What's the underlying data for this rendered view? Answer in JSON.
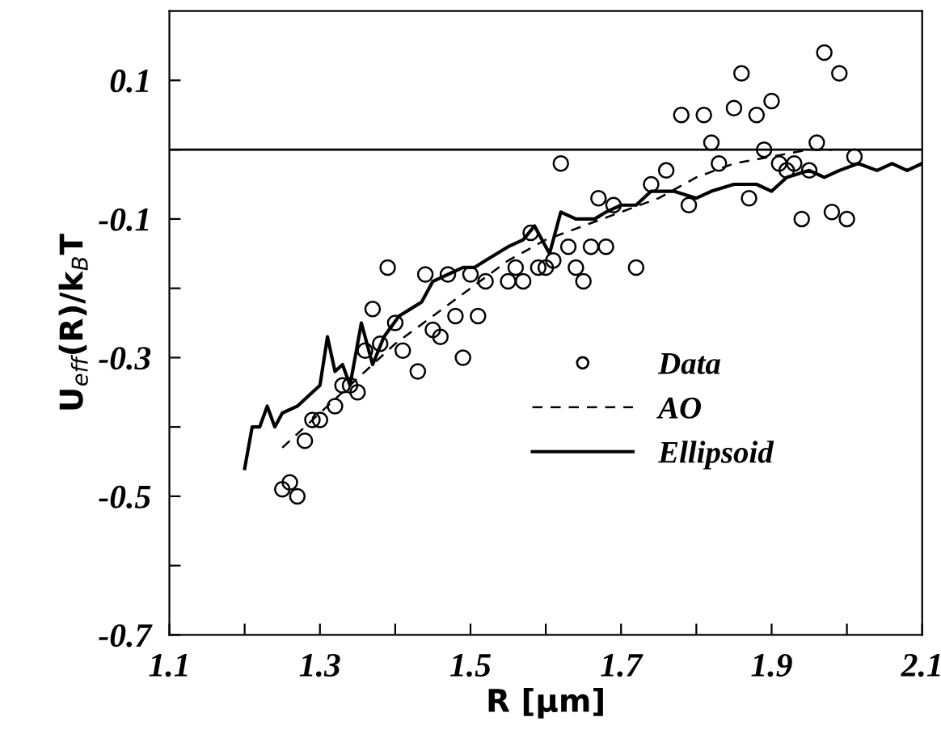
{
  "chart_data": {
    "type": "scatter",
    "xlabel": "R [µm]",
    "ylabel": "U$_{eff}$(R)/k$_{B}$T",
    "xlim": [
      1.1,
      2.1
    ],
    "ylim": [
      -0.7,
      0.2
    ],
    "xticks": [
      1.1,
      {
        "value": 1.2,
        "label": null
      },
      1.3,
      {
        "value": 1.4,
        "label": null
      },
      1.5,
      {
        "value": 1.6,
        "label": null
      },
      1.7,
      {
        "value": 1.8,
        "label": null
      },
      1.9,
      {
        "value": 2.0,
        "label": null
      },
      2.1
    ],
    "yticks": [
      -0.7,
      {
        "value": -0.6,
        "label": null
      },
      -0.5,
      {
        "value": -0.4,
        "label": null
      },
      -0.3,
      {
        "value": -0.2,
        "label": null
      },
      -0.1,
      {
        "value": 0,
        "label": null
      },
      0.1
    ],
    "ref_lines": [
      {
        "axis": "y",
        "value": 0,
        "color": "#000000",
        "line_style": "solid"
      }
    ],
    "grid": false,
    "legend": "bottom right",
    "series": [
      {
        "name": "Data",
        "marker": "circle",
        "color": "#000000",
        "x": [
          1.25,
          1.26,
          1.27,
          1.28,
          1.29,
          1.3,
          1.32,
          1.33,
          1.34,
          1.35,
          1.36,
          1.38,
          1.41,
          1.43,
          1.45,
          1.46,
          1.49,
          1.39,
          1.37,
          1.4,
          1.44,
          1.47,
          1.5,
          1.48,
          1.51,
          1.55,
          1.56,
          1.97,
          1.99,
          1.86,
          1.9,
          1.85,
          1.88,
          1.78,
          1.81,
          1.96,
          1.82,
          1.89,
          2.01,
          1.62,
          1.83,
          1.93,
          1.91,
          1.76,
          1.92,
          1.95,
          1.74,
          1.67,
          1.69,
          1.79,
          1.87,
          1.94,
          1.98,
          2.0,
          1.58,
          1.63,
          1.68,
          1.66,
          1.59,
          1.6,
          1.61,
          1.64,
          1.65,
          1.72,
          1.57,
          1.52
        ],
        "values": [
          -0.49,
          -0.48,
          -0.5,
          -0.42,
          -0.39,
          -0.39,
          -0.37,
          -0.34,
          -0.34,
          -0.35,
          -0.29,
          -0.28,
          -0.29,
          -0.32,
          -0.26,
          -0.27,
          -0.3,
          -0.17,
          -0.23,
          -0.25,
          -0.18,
          -0.18,
          -0.18,
          -0.24,
          -0.24,
          -0.19,
          -0.17,
          0.14,
          0.11,
          0.11,
          0.07,
          0.06,
          0.05,
          0.05,
          0.05,
          0.01,
          0.01,
          0.0,
          -0.01,
          -0.02,
          -0.02,
          -0.02,
          -0.02,
          -0.03,
          -0.03,
          -0.03,
          -0.05,
          -0.07,
          -0.08,
          -0.08,
          -0.07,
          -0.1,
          -0.09,
          -0.1,
          -0.12,
          -0.14,
          -0.14,
          -0.14,
          -0.17,
          -0.17,
          -0.16,
          -0.17,
          -0.19,
          -0.17,
          -0.19,
          -0.19
        ]
      },
      {
        "name": "AO",
        "type": "line",
        "line_style": "dashed",
        "marker": "none",
        "color": "#000000",
        "x": [
          1.25,
          1.3,
          1.35,
          1.4,
          1.45,
          1.5,
          1.55,
          1.6,
          1.65,
          1.7,
          1.75,
          1.8,
          1.85,
          1.9,
          1.95,
          1.98
        ],
        "values": [
          -0.43,
          -0.38,
          -0.33,
          -0.28,
          -0.24,
          -0.2,
          -0.16,
          -0.13,
          -0.11,
          -0.09,
          -0.07,
          -0.04,
          -0.02,
          -0.01,
          0.0,
          0.0
        ]
      },
      {
        "name": "Ellipsoid",
        "type": "line",
        "line_style": "solid",
        "marker": "none",
        "color": "#000000",
        "x": [
          1.2,
          1.21,
          1.22,
          1.23,
          1.24,
          1.25,
          1.27,
          1.29,
          1.3,
          1.31,
          1.32,
          1.33,
          1.34,
          1.355,
          1.37,
          1.385,
          1.405,
          1.42,
          1.435,
          1.45,
          1.47,
          1.49,
          1.505,
          1.52,
          1.535,
          1.55,
          1.57,
          1.585,
          1.605,
          1.62,
          1.64,
          1.665,
          1.68,
          1.7,
          1.72,
          1.74,
          1.77,
          1.8,
          1.82,
          1.85,
          1.88,
          1.9,
          1.92,
          1.95,
          1.97,
          1.99,
          2.015,
          2.04,
          2.06,
          2.08,
          2.1
        ],
        "values": [
          -0.46,
          -0.4,
          -0.4,
          -0.37,
          -0.4,
          -0.38,
          -0.37,
          -0.35,
          -0.34,
          -0.27,
          -0.32,
          -0.31,
          -0.34,
          -0.25,
          -0.31,
          -0.27,
          -0.24,
          -0.23,
          -0.22,
          -0.19,
          -0.18,
          -0.17,
          -0.17,
          -0.16,
          -0.15,
          -0.14,
          -0.13,
          -0.11,
          -0.15,
          -0.09,
          -0.1,
          -0.1,
          -0.09,
          -0.08,
          -0.08,
          -0.06,
          -0.06,
          -0.07,
          -0.06,
          -0.05,
          -0.05,
          -0.06,
          -0.04,
          -0.03,
          -0.04,
          -0.03,
          -0.02,
          -0.03,
          -0.02,
          -0.03,
          -0.02
        ]
      }
    ]
  }
}
